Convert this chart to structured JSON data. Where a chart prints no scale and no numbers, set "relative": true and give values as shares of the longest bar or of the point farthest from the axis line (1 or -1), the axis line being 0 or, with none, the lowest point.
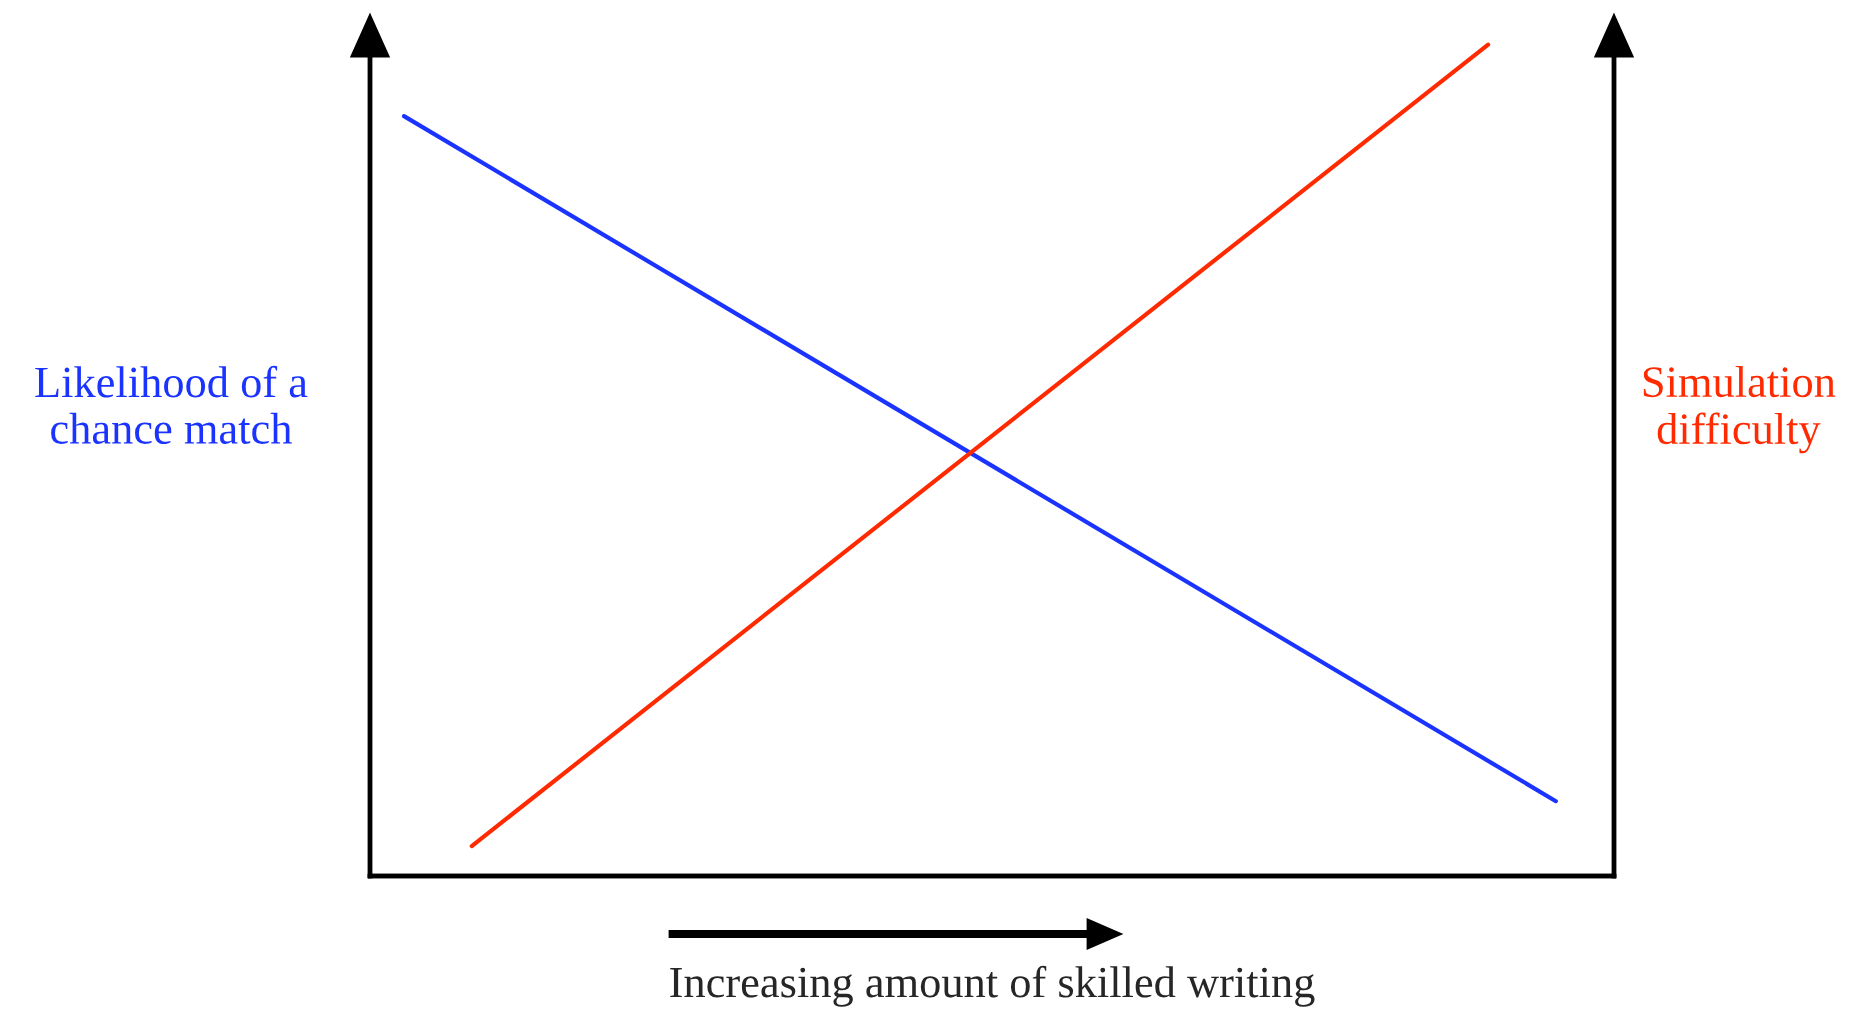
{
  "chart_data": {
    "type": "line",
    "relative": true,
    "xlabel": "Increasing amount of skilled writing",
    "ylabel": "Likelihood of a\nchance match",
    "y2label": "Simulation\ndifficulty",
    "categories": [
      null,
      null,
      null,
      null,
      null,
      null,
      null,
      null,
      null,
      null,
      null,
      null,
      null,
      null,
      null,
      null,
      null,
      null
    ],
    "series": [
      {
        "color": "#1a33ff",
        "values": [
          0.914,
          null,
          null,
          null,
          null,
          null,
          null,
          null,
          null,
          null,
          null,
          null,
          null,
          null,
          null,
          null,
          null,
          0.09
        ]
      },
      {
        "color": "#ff2a00",
        "values": [
          null,
          0.036,
          null,
          null,
          null,
          null,
          null,
          null,
          null,
          null,
          null,
          null,
          null,
          null,
          null,
          null,
          1.0,
          null
        ]
      }
    ],
    "marker": "none",
    "line_style": "solid"
  }
}
